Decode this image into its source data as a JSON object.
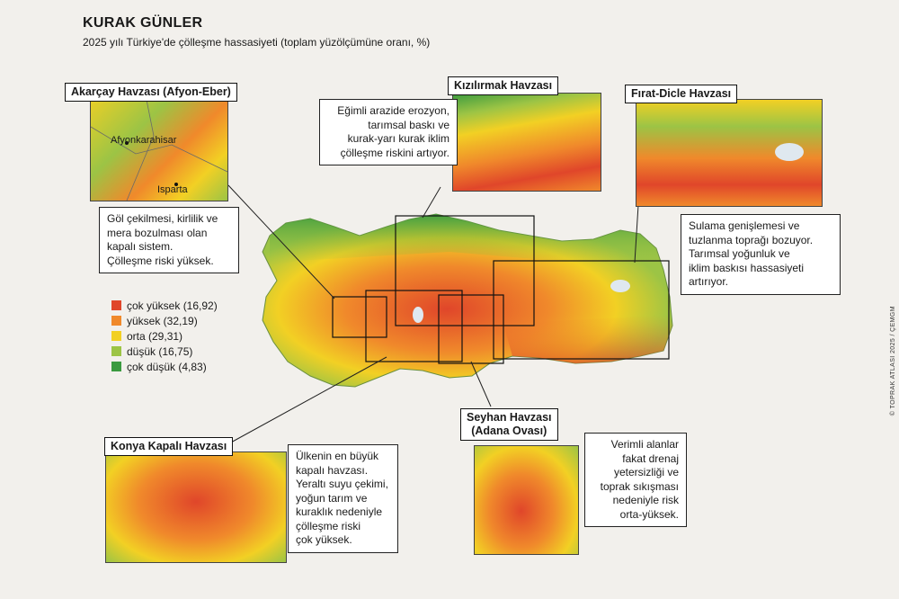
{
  "header": {
    "title": "KURAK GÜNLER",
    "subtitle": "2025 yılı Türkiye'de çölleşme hassasiyeti (toplam yüzölçümüne oranı, %)"
  },
  "legend": {
    "items": [
      {
        "label": "çok yüksek (16,92)",
        "color": "#e0462a"
      },
      {
        "label": "yüksek (32,19)",
        "color": "#f0892b"
      },
      {
        "label": "orta (29,31)",
        "color": "#f2d024"
      },
      {
        "label": "düşük (16,75)",
        "color": "#9cc445"
      },
      {
        "label": "çok düşük (4,83)",
        "color": "#3a9a3f"
      }
    ]
  },
  "basins": {
    "akarcay": {
      "label": "Akarçay Havzası (Afyon-Eber)",
      "note": [
        "Göl çekilmesi, kirlilik ve",
        "mera bozulması olan",
        "kapalı sistem.",
        "Çölleşme riski yüksek."
      ],
      "places": [
        "Afyonkarahisar",
        "Isparta"
      ]
    },
    "kizilirmak": {
      "label": "Kızılırmak Havzası",
      "note": [
        "Eğimli arazide erozyon,",
        "tarımsal baskı ve",
        "kurak-yarı kurak iklim",
        "çölleşme riskini artıyor."
      ]
    },
    "firat": {
      "label": "Fırat-Dicle Havzası",
      "note": [
        "Sulama genişlemesi ve",
        "tuzlanma toprağı bozuyor.",
        "Tarımsal yoğunluk ve",
        "iklim baskısı hassasiyeti",
        "artırıyor."
      ]
    },
    "konya": {
      "label": "Konya Kapalı Havzası",
      "note": [
        "Ülkenin en büyük",
        "kapalı havzası.",
        "Yeraltı suyu çekimi,",
        "yoğun tarım ve",
        "kuraklık nedeniyle",
        "çölleşme riski",
        "çok yüksek."
      ]
    },
    "seyhan": {
      "label_lines": [
        "Seyhan Havzası",
        "(Adana Ovası)"
      ],
      "note": [
        "Verimli alanlar",
        "fakat drenaj",
        "yetersizliği ve",
        "toprak sıkışması",
        "nedeniyle risk",
        "orta-yüksek."
      ]
    }
  },
  "credit": "© TOPRAK ATLASI 2025 / ÇEMGM",
  "colors": {
    "very_high": "#e0462a",
    "high": "#f0892b",
    "medium": "#f2d024",
    "low": "#9cc445",
    "very_low": "#3a9a3f",
    "lake": "#dfe8ef"
  }
}
